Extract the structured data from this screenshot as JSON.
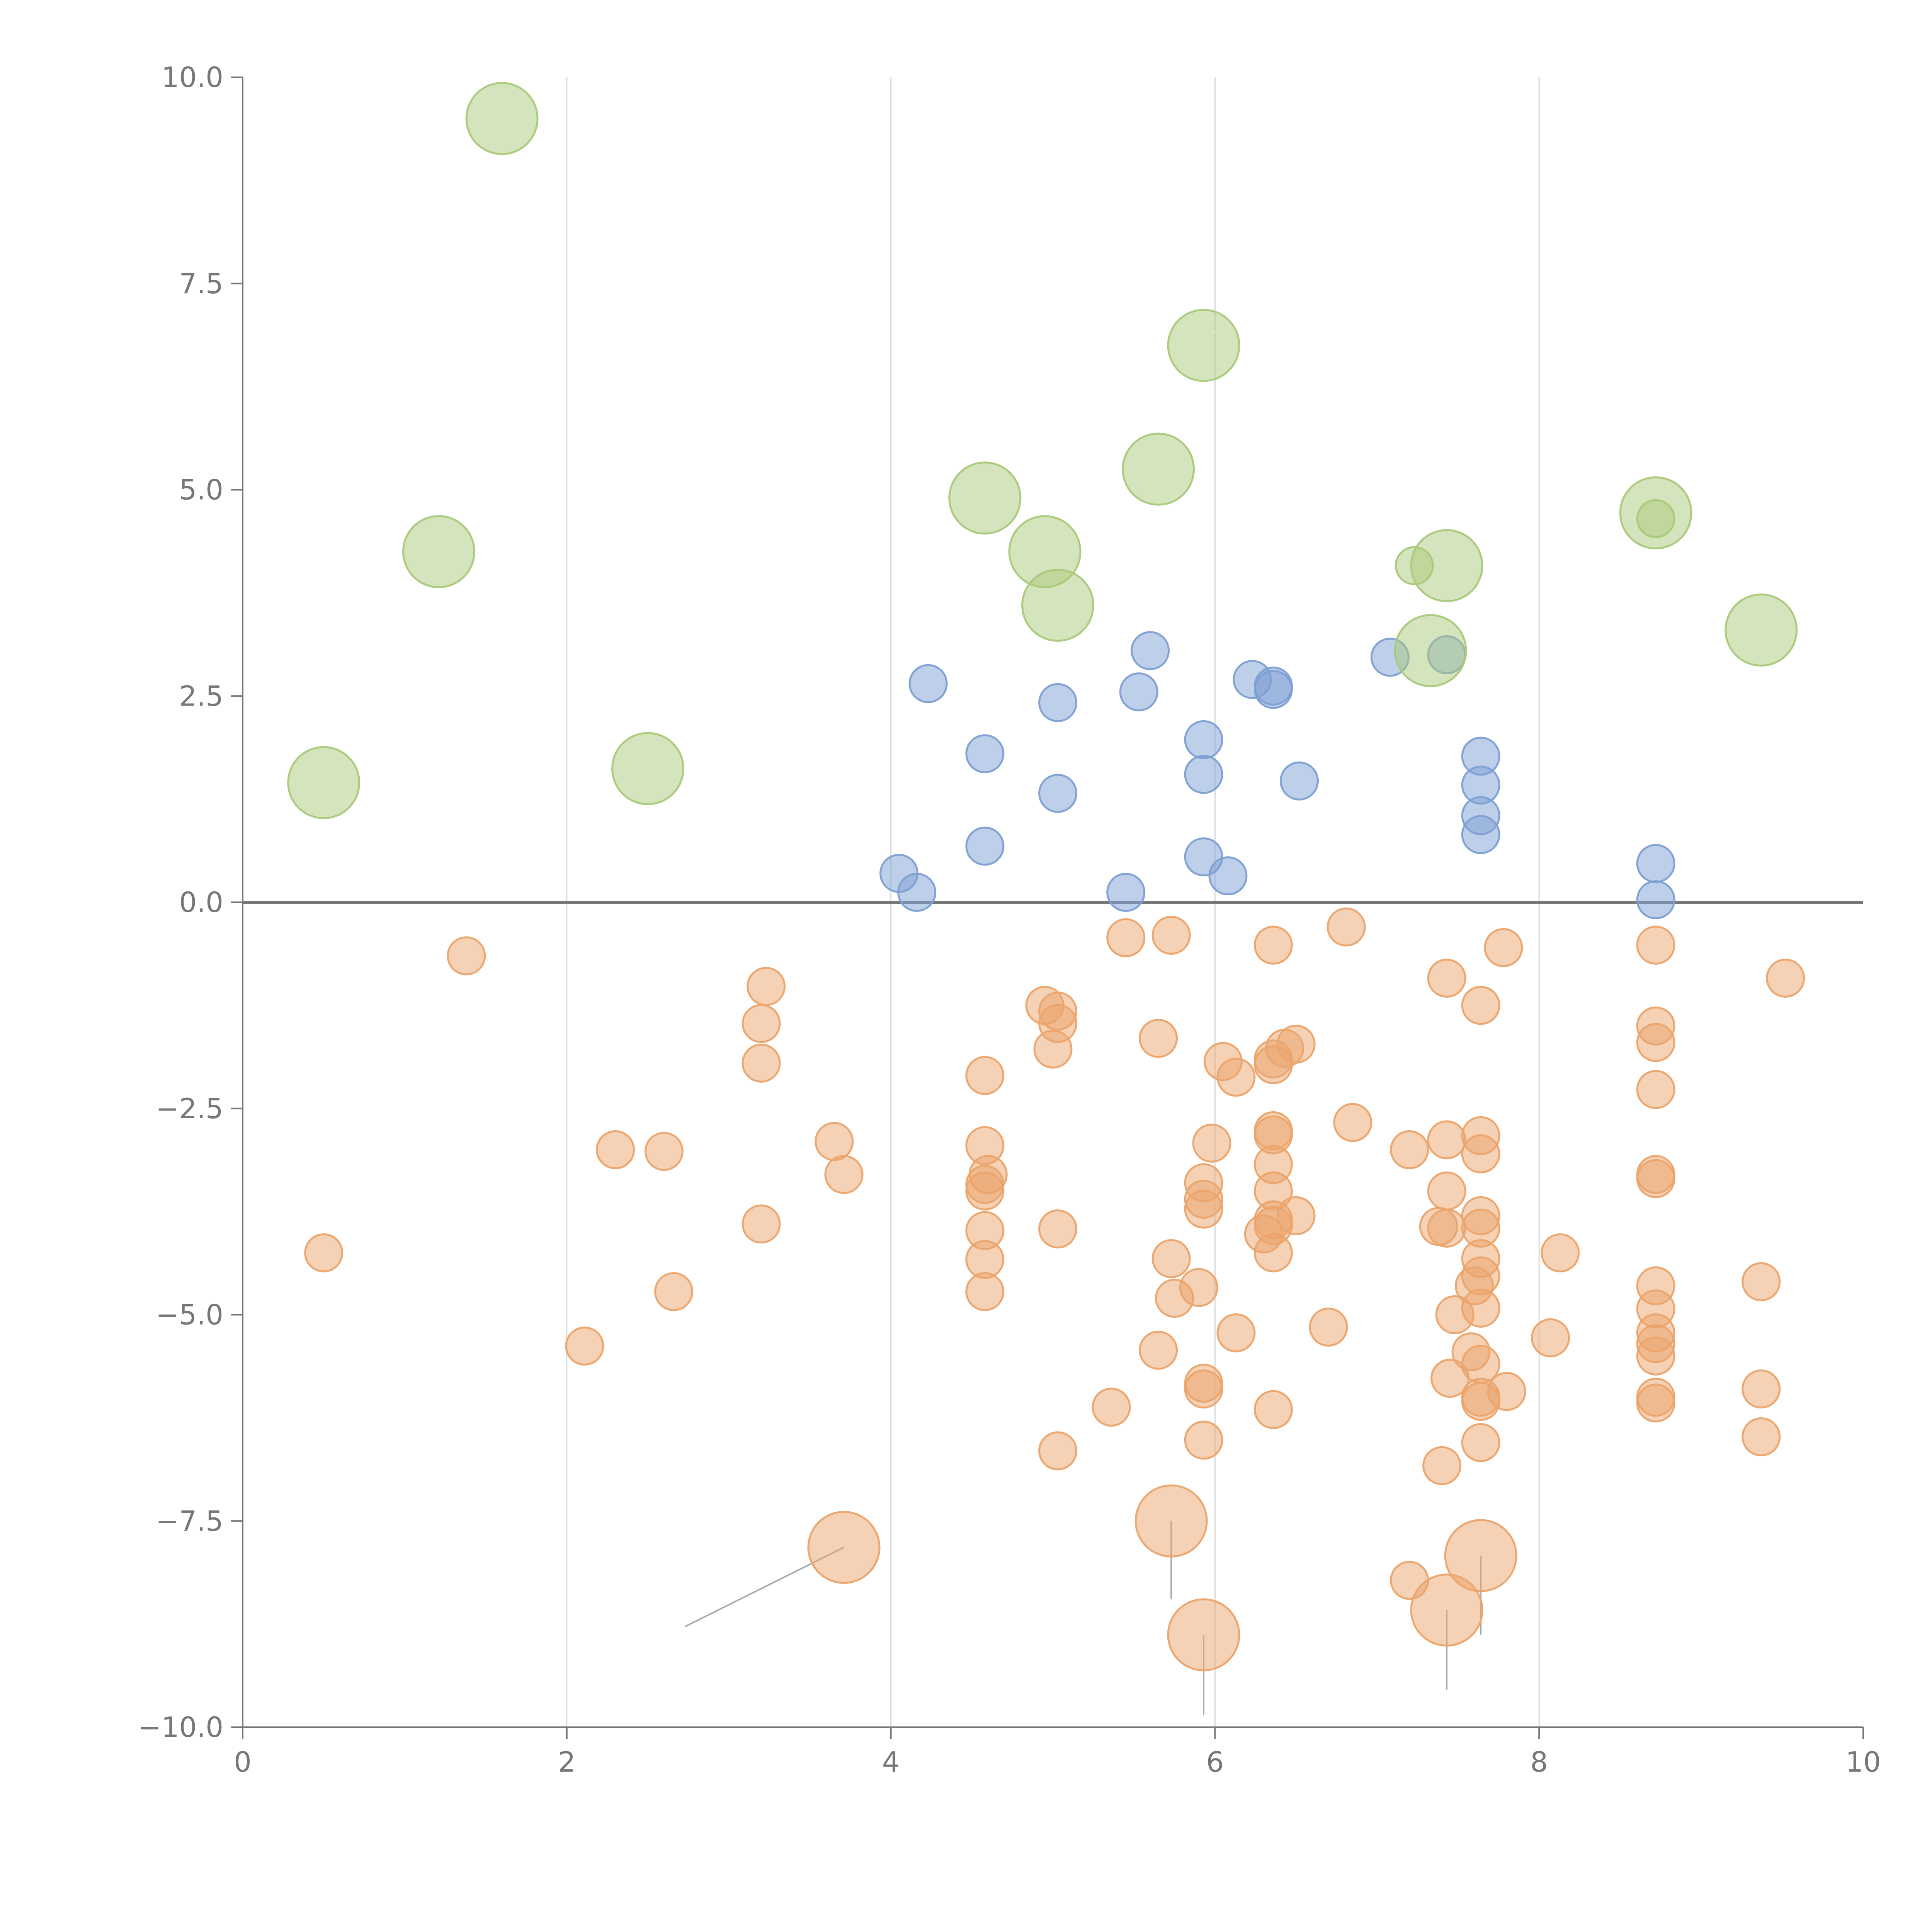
{
  "chart_data": {
    "type": "scatter",
    "title": "",
    "xlabel": "",
    "ylabel": "",
    "xlim": [
      0,
      10
    ],
    "ylim": [
      -10,
      10
    ],
    "grid": "vertical",
    "x_ticks": [
      "0",
      "2",
      "4",
      "6",
      "8",
      "10"
    ],
    "x_tick_values": [
      0,
      2,
      4,
      6,
      8,
      10
    ],
    "y_ticks": [
      "10.0",
      "7.5",
      "5.0",
      "2.5",
      "0.0",
      "−2.5",
      "−5.0",
      "−7.5",
      "−10.0"
    ],
    "y_tick_values": [
      10,
      7.5,
      5,
      2.5,
      0,
      -2.5,
      -5,
      -7.5,
      -10
    ],
    "zero_line": 0,
    "series": [
      {
        "name": "green",
        "color": "#a9c97a",
        "size": "large",
        "points": [
          [
            1.6,
            9.5
          ],
          [
            1.21,
            4.25
          ],
          [
            0.5,
            1.45
          ],
          [
            2.5,
            1.62
          ],
          [
            4.58,
            4.9
          ],
          [
            4.95,
            4.25
          ],
          [
            5.03,
            3.6
          ],
          [
            5.65,
            5.25
          ],
          [
            5.93,
            6.75
          ],
          [
            7.43,
            4.08
          ],
          [
            7.33,
            3.05
          ],
          [
            8.72,
            4.72
          ],
          [
            9.37,
            3.3
          ]
        ]
      },
      {
        "name": "green-small",
        "color": "#a9c97a",
        "size": "small",
        "points": [
          [
            7.23,
            4.08
          ],
          [
            8.72,
            4.65
          ]
        ]
      },
      {
        "name": "blue",
        "color": "#7d9fd4",
        "size": "small",
        "points": [
          [
            4.23,
            2.65
          ],
          [
            4.58,
            1.8
          ],
          [
            4.58,
            0.68
          ],
          [
            4.05,
            0.35
          ],
          [
            4.16,
            0.12
          ],
          [
            5.03,
            2.42
          ],
          [
            5.03,
            1.32
          ],
          [
            5.45,
            0.12
          ],
          [
            5.6,
            3.05
          ],
          [
            5.53,
            2.55
          ],
          [
            5.93,
            1.97
          ],
          [
            5.93,
            1.55
          ],
          [
            5.93,
            0.55
          ],
          [
            6.08,
            0.32
          ],
          [
            6.23,
            2.7
          ],
          [
            6.36,
            2.62
          ],
          [
            6.36,
            2.58
          ],
          [
            6.52,
            1.47
          ],
          [
            7.08,
            2.97
          ],
          [
            7.43,
            3.0
          ],
          [
            7.64,
            1.77
          ],
          [
            7.64,
            1.42
          ],
          [
            7.64,
            1.05
          ],
          [
            7.64,
            0.82
          ],
          [
            8.72,
            0.47
          ],
          [
            8.72,
            0.03
          ]
        ]
      },
      {
        "name": "orange",
        "color": "#eba46b",
        "size": "small",
        "points": [
          [
            1.38,
            -0.65
          ],
          [
            0.5,
            -4.25
          ],
          [
            2.3,
            -3.0
          ],
          [
            2.6,
            -3.02
          ],
          [
            2.66,
            -4.72
          ],
          [
            2.11,
            -5.38
          ],
          [
            3.23,
            -1.02
          ],
          [
            3.2,
            -1.47
          ],
          [
            3.2,
            -1.95
          ],
          [
            3.2,
            -3.9
          ],
          [
            3.65,
            -2.9
          ],
          [
            3.71,
            -3.3
          ],
          [
            4.58,
            -2.1
          ],
          [
            4.58,
            -2.95
          ],
          [
            4.6,
            -3.3
          ],
          [
            4.58,
            -3.42
          ],
          [
            4.58,
            -3.5
          ],
          [
            4.58,
            -3.98
          ],
          [
            4.58,
            -4.33
          ],
          [
            4.58,
            -4.72
          ],
          [
            4.95,
            -1.25
          ],
          [
            5.03,
            -1.32
          ],
          [
            5.03,
            -1.47
          ],
          [
            5.0,
            -1.78
          ],
          [
            5.03,
            -3.96
          ],
          [
            5.03,
            -6.65
          ],
          [
            5.45,
            -0.43
          ],
          [
            5.36,
            -6.12
          ],
          [
            5.65,
            -1.65
          ],
          [
            5.65,
            -5.43
          ],
          [
            5.73,
            -0.4
          ],
          [
            5.73,
            -4.32
          ],
          [
            5.75,
            -4.8
          ],
          [
            5.9,
            -4.67
          ],
          [
            5.93,
            -3.4
          ],
          [
            5.93,
            -3.6
          ],
          [
            5.93,
            -3.72
          ],
          [
            5.98,
            -2.92
          ],
          [
            5.93,
            -5.83
          ],
          [
            5.93,
            -5.9
          ],
          [
            5.93,
            -6.52
          ],
          [
            6.05,
            -1.93
          ],
          [
            6.13,
            -2.12
          ],
          [
            6.13,
            -5.22
          ],
          [
            6.3,
            -4.02
          ],
          [
            6.36,
            -0.52
          ],
          [
            6.36,
            -1.9
          ],
          [
            6.36,
            -1.97
          ],
          [
            6.43,
            -1.77
          ],
          [
            6.5,
            -1.72
          ],
          [
            6.36,
            -2.77
          ],
          [
            6.36,
            -2.82
          ],
          [
            6.36,
            -3.18
          ],
          [
            6.36,
            -3.5
          ],
          [
            6.36,
            -3.85
          ],
          [
            6.36,
            -3.92
          ],
          [
            6.36,
            -4.25
          ],
          [
            6.36,
            -6.15
          ],
          [
            6.5,
            -3.8
          ],
          [
            6.81,
            -0.3
          ],
          [
            6.85,
            -2.67
          ],
          [
            6.7,
            -5.15
          ],
          [
            7.2,
            -3.0
          ],
          [
            7.43,
            -0.92
          ],
          [
            7.43,
            -2.88
          ],
          [
            7.43,
            -3.5
          ],
          [
            7.38,
            -3.93
          ],
          [
            7.43,
            -3.95
          ],
          [
            7.48,
            -5.0
          ],
          [
            7.45,
            -5.77
          ],
          [
            7.58,
            -5.45
          ],
          [
            7.4,
            -6.83
          ],
          [
            7.64,
            -1.25
          ],
          [
            7.64,
            -2.83
          ],
          [
            7.64,
            -3.05
          ],
          [
            7.64,
            -3.8
          ],
          [
            7.64,
            -3.95
          ],
          [
            7.64,
            -4.32
          ],
          [
            7.64,
            -4.53
          ],
          [
            7.6,
            -4.65
          ],
          [
            7.64,
            -4.92
          ],
          [
            7.64,
            -5.6
          ],
          [
            7.64,
            -6.0
          ],
          [
            7.64,
            -6.05
          ],
          [
            7.64,
            -6.55
          ],
          [
            7.78,
            -0.55
          ],
          [
            7.8,
            -5.93
          ],
          [
            8.07,
            -5.28
          ],
          [
            8.13,
            -4.25
          ],
          [
            7.2,
            -8.22
          ],
          [
            8.72,
            -0.52
          ],
          [
            8.72,
            -1.5
          ],
          [
            8.72,
            -1.7
          ],
          [
            8.72,
            -2.27
          ],
          [
            8.72,
            -3.3
          ],
          [
            8.72,
            -3.35
          ],
          [
            8.72,
            -4.65
          ],
          [
            8.72,
            -4.93
          ],
          [
            8.72,
            -5.22
          ],
          [
            8.72,
            -5.35
          ],
          [
            8.72,
            -5.5
          ],
          [
            8.72,
            -6.0
          ],
          [
            8.72,
            -6.07
          ],
          [
            9.37,
            -4.6
          ],
          [
            9.37,
            -5.9
          ],
          [
            9.37,
            -6.48
          ],
          [
            9.52,
            -0.92
          ]
        ]
      },
      {
        "name": "orange-large",
        "color": "#eba46b",
        "size": "large",
        "points": [
          [
            3.71,
            -7.82
          ],
          [
            5.73,
            -7.5
          ],
          [
            7.64,
            -7.92
          ],
          [
            5.93,
            -8.88
          ],
          [
            7.43,
            -8.58
          ]
        ]
      }
    ],
    "leaders": [
      {
        "from": [
          3.71,
          -7.82
        ],
        "to": [
          2.73,
          -8.78
        ],
        "style": "grey"
      },
      {
        "from": [
          5.73,
          -7.5
        ],
        "to": [
          5.73,
          -8.45
        ],
        "style": "grey"
      },
      {
        "from": [
          5.93,
          -8.88
        ],
        "to": [
          5.93,
          -9.85
        ],
        "style": "grey"
      },
      {
        "from": [
          7.43,
          -8.58
        ],
        "to": [
          7.43,
          -9.55
        ],
        "style": "grey"
      },
      {
        "from": [
          7.64,
          -7.92
        ],
        "to": [
          7.64,
          -8.88
        ],
        "style": "grey"
      },
      {
        "from": [
          1.6,
          9.5
        ],
        "to": [
          1.8,
          9.55
        ],
        "style": "light"
      },
      {
        "from": [
          0.5,
          1.45
        ],
        "to": [
          0.7,
          1.5
        ],
        "style": "light"
      },
      {
        "from": [
          2.5,
          1.62
        ],
        "to": [
          2.7,
          1.67
        ],
        "style": "light"
      },
      {
        "from": [
          4.58,
          4.9
        ],
        "to": [
          4.67,
          5.12
        ],
        "style": "light"
      },
      {
        "from": [
          4.95,
          4.25
        ],
        "to": [
          4.75,
          4.22
        ],
        "style": "light"
      },
      {
        "from": [
          5.03,
          3.6
        ],
        "to": [
          4.95,
          3.3
        ],
        "style": "light"
      },
      {
        "from": [
          5.65,
          5.25
        ],
        "to": [
          5.85,
          5.3
        ],
        "style": "light"
      },
      {
        "from": [
          5.93,
          6.75
        ],
        "to": [
          6.03,
          6.98
        ],
        "style": "light"
      },
      {
        "from": [
          7.43,
          4.08
        ],
        "to": [
          7.53,
          4.3
        ],
        "style": "light"
      },
      {
        "from": [
          7.33,
          3.05
        ],
        "to": [
          7.28,
          2.8
        ],
        "style": "light"
      },
      {
        "from": [
          8.72,
          4.72
        ],
        "to": [
          8.92,
          4.77
        ],
        "style": "light"
      },
      {
        "from": [
          9.37,
          3.3
        ],
        "to": [
          9.37,
          3.03
        ],
        "style": "light"
      },
      {
        "from": [
          7.64,
          1.42
        ],
        "to": [
          7.7,
          1.05
        ],
        "style": "light"
      }
    ]
  }
}
